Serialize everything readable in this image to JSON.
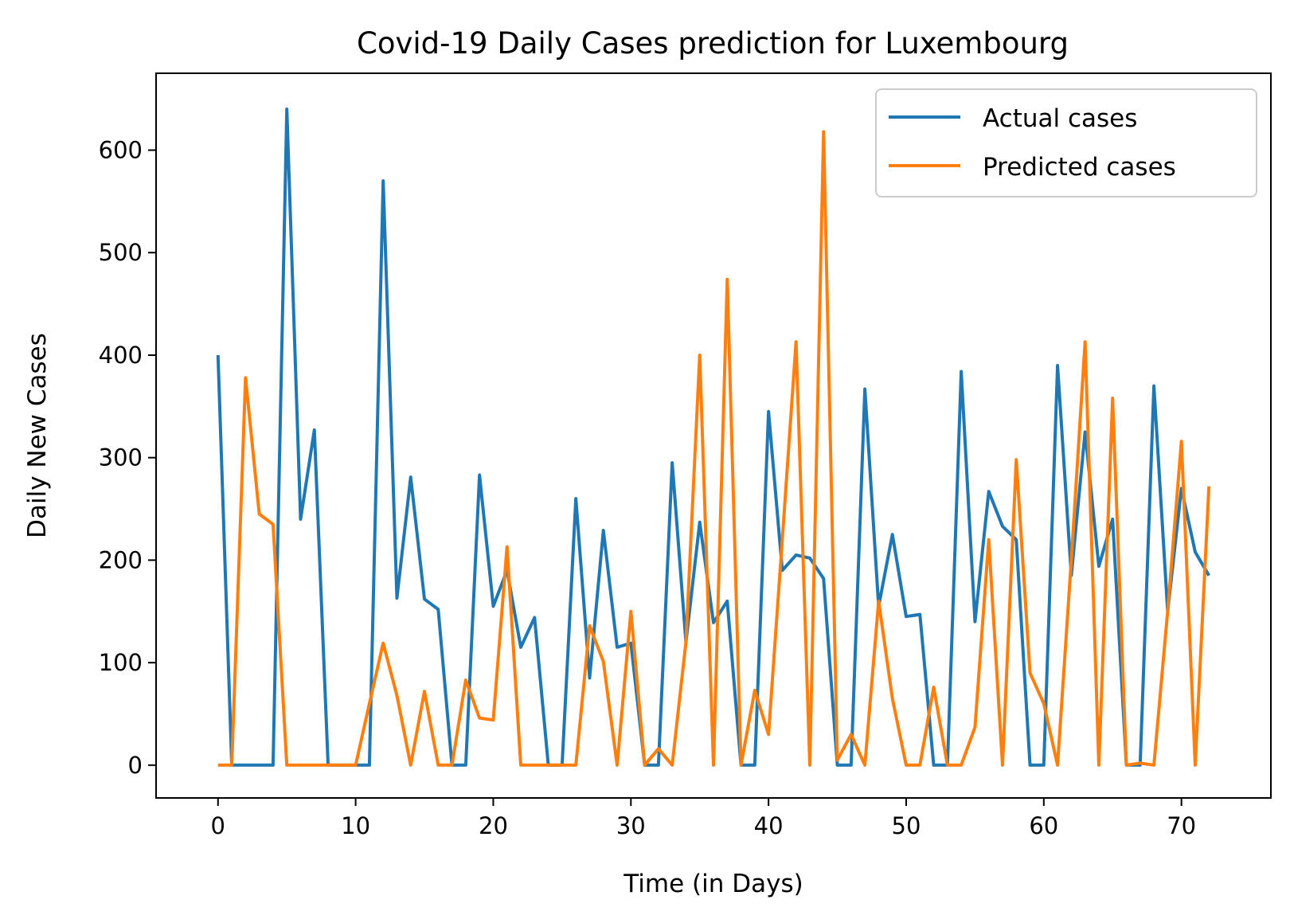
{
  "chart_data": {
    "type": "line",
    "title": "Covid-19 Daily Cases prediction for Luxembourg",
    "xlabel": "Time (in Days)",
    "ylabel": "Daily New Cases",
    "xlim": [
      -4.5,
      76.5
    ],
    "ylim": [
      -32,
      675
    ],
    "xticks": [
      0,
      10,
      20,
      30,
      40,
      50,
      60,
      70
    ],
    "yticks": [
      0,
      100,
      200,
      300,
      400,
      500,
      600
    ],
    "grid": false,
    "legend_position": "top-right",
    "x": [
      0,
      1,
      2,
      3,
      4,
      5,
      6,
      7,
      8,
      9,
      10,
      11,
      12,
      13,
      14,
      15,
      16,
      17,
      18,
      19,
      20,
      21,
      22,
      23,
      24,
      25,
      26,
      27,
      28,
      29,
      30,
      31,
      32,
      33,
      34,
      35,
      36,
      37,
      38,
      39,
      40,
      41,
      42,
      43,
      44,
      45,
      46,
      47,
      48,
      49,
      50,
      51,
      52,
      53,
      54,
      55,
      56,
      57,
      58,
      59,
      60,
      61,
      62,
      63,
      64,
      65,
      66,
      67,
      68,
      69,
      70,
      71,
      72
    ],
    "series": [
      {
        "name": "Actual cases",
        "color": "#1f77b4",
        "values": [
          400,
          0,
          0,
          0,
          0,
          640,
          240,
          327,
          0,
          0,
          0,
          0,
          570,
          163,
          281,
          162,
          152,
          0,
          0,
          283,
          155,
          190,
          115,
          144,
          0,
          0,
          260,
          85,
          229,
          115,
          119,
          0,
          0,
          295,
          120,
          237,
          139,
          160,
          0,
          0,
          345,
          190,
          205,
          202,
          182,
          0,
          0,
          367,
          155,
          225,
          145,
          147,
          0,
          0,
          384,
          140,
          267,
          233,
          220,
          0,
          0,
          390,
          185,
          325,
          194,
          240,
          0,
          0,
          370,
          150,
          270,
          208,
          185
        ]
      },
      {
        "name": "Predicted cases",
        "color": "#ff7f0e",
        "values": [
          0,
          0,
          378,
          245,
          235,
          0,
          0,
          0,
          0,
          0,
          0,
          60,
          119,
          68,
          0,
          72,
          0,
          0,
          83,
          46,
          44,
          213,
          0,
          0,
          0,
          0,
          0,
          136,
          101,
          0,
          150,
          0,
          16,
          0,
          120,
          400,
          0,
          474,
          0,
          73,
          30,
          220,
          413,
          0,
          618,
          5,
          30,
          0,
          160,
          65,
          0,
          0,
          76,
          0,
          0,
          37,
          220,
          0,
          298,
          90,
          60,
          0,
          200,
          413,
          0,
          358,
          0,
          2,
          0,
          150,
          316,
          0,
          272
        ]
      }
    ]
  }
}
